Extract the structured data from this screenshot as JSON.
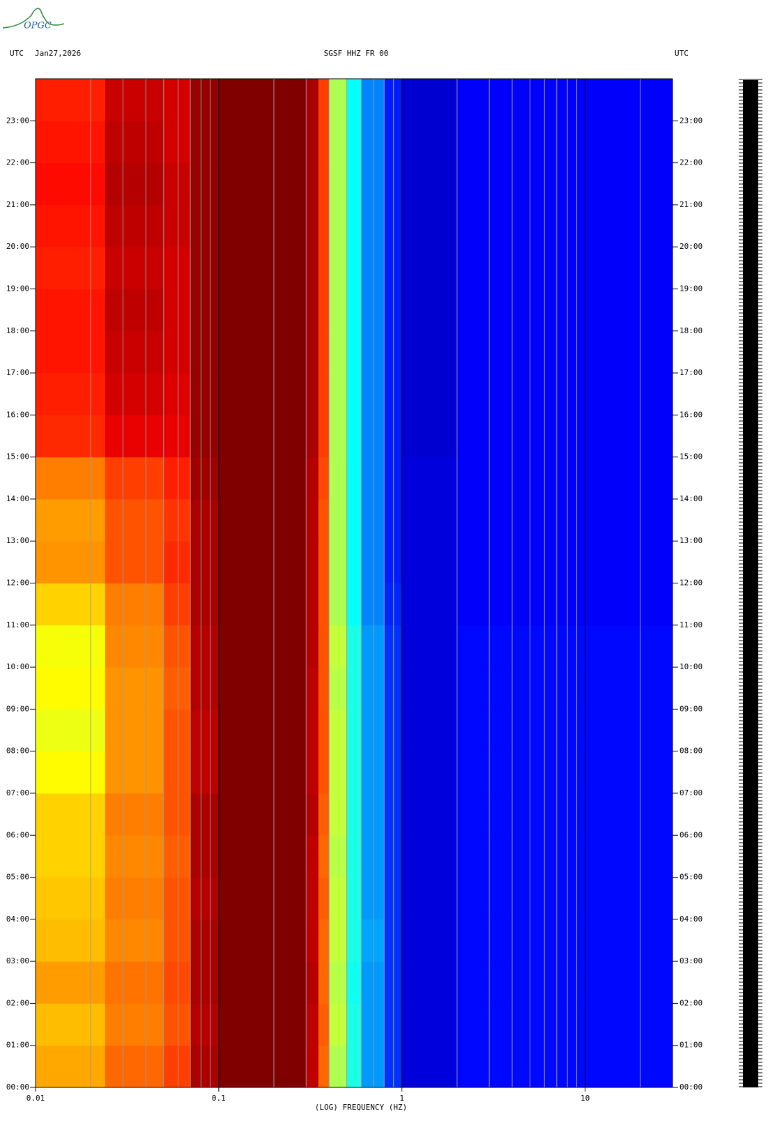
{
  "chart_data": {
    "type": "spectrogram",
    "logo": "OPGC",
    "left_label": "UTC",
    "date": "Jan27,2026",
    "title": "SGSF HHZ FR 00",
    "right_label": "UTC",
    "xlabel": "(LOG) FREQUENCY (HZ)",
    "xscale": "log",
    "colormap": "jet",
    "xlim": [
      0.01,
      30
    ],
    "xticks": [
      0.01,
      0.1,
      1,
      10
    ],
    "xminor": [
      0.02,
      0.03,
      0.04,
      0.05,
      0.06,
      0.07,
      0.08,
      0.09,
      0.2,
      0.3,
      0.4,
      0.5,
      0.6,
      0.7,
      0.8,
      0.9,
      2,
      3,
      4,
      5,
      6,
      7,
      8,
      9,
      20
    ],
    "ylim": [
      0,
      24
    ],
    "yticks": [
      {
        "value": 0,
        "label": "00:00"
      },
      {
        "value": 1,
        "label": "01:00"
      },
      {
        "value": 2,
        "label": "02:00"
      },
      {
        "value": 3,
        "label": "03:00"
      },
      {
        "value": 4,
        "label": "04:00"
      },
      {
        "value": 5,
        "label": "05:00"
      },
      {
        "value": 6,
        "label": "06:00"
      },
      {
        "value": 7,
        "label": "07:00"
      },
      {
        "value": 8,
        "label": "08:00"
      },
      {
        "value": 9,
        "label": "09:00"
      },
      {
        "value": 10,
        "label": "10:00"
      },
      {
        "value": 11,
        "label": "11:00"
      },
      {
        "value": 12,
        "label": "12:00"
      },
      {
        "value": 13,
        "label": "13:00"
      },
      {
        "value": 14,
        "label": "14:00"
      },
      {
        "value": 15,
        "label": "15:00"
      },
      {
        "value": 16,
        "label": "16:00"
      },
      {
        "value": 17,
        "label": "17:00"
      },
      {
        "value": 18,
        "label": "18:00"
      },
      {
        "value": 19,
        "label": "19:00"
      },
      {
        "value": 20,
        "label": "20:00"
      },
      {
        "value": 21,
        "label": "21:00"
      },
      {
        "value": 22,
        "label": "22:00"
      },
      {
        "value": 23,
        "label": "23:00"
      }
    ],
    "freq_edges": [
      0.01,
      0.024,
      0.05,
      0.07,
      0.1,
      0.3,
      0.35,
      0.4,
      0.5,
      0.6,
      0.8,
      1,
      2,
      30
    ],
    "time_edges": [
      0,
      1,
      2,
      3,
      4,
      5,
      6,
      7,
      8,
      9,
      10,
      11,
      12,
      13,
      14,
      15,
      16,
      17,
      18,
      19,
      20,
      21,
      22,
      23,
      24
    ],
    "z": [
      [
        72,
        78,
        82,
        96,
        100,
        94,
        78,
        56,
        42,
        30,
        20,
        12,
        16
      ],
      [
        70,
        76,
        80,
        95,
        100,
        94,
        79,
        58,
        42,
        30,
        20,
        12,
        16
      ],
      [
        73,
        77,
        81,
        96,
        100,
        95,
        78,
        57,
        41,
        30,
        20,
        12,
        16
      ],
      [
        70,
        75,
        80,
        96,
        100,
        94,
        78,
        58,
        42,
        31,
        20,
        12,
        16
      ],
      [
        69,
        76,
        80,
        95,
        100,
        94,
        79,
        58,
        42,
        30,
        20,
        12,
        16
      ],
      [
        68,
        75,
        79,
        96,
        100,
        94,
        78,
        57,
        42,
        30,
        20,
        12,
        16
      ],
      [
        68,
        76,
        80,
        96,
        100,
        95,
        79,
        58,
        42,
        30,
        20,
        12,
        16
      ],
      [
        64,
        74,
        80,
        94,
        100,
        94,
        80,
        58,
        42,
        30,
        20,
        12,
        16
      ],
      [
        62,
        74,
        80,
        94,
        100,
        94,
        80,
        58,
        42,
        30,
        20,
        12,
        16
      ],
      [
        64,
        74,
        79,
        95,
        100,
        94,
        80,
        57,
        42,
        30,
        20,
        12,
        16
      ],
      [
        63,
        75,
        80,
        95,
        100,
        95,
        80,
        58,
        42,
        30,
        20,
        12,
        16
      ],
      [
        68,
        76,
        82,
        96,
        100,
        95,
        80,
        56,
        40,
        28,
        19,
        12,
        15
      ],
      [
        74,
        80,
        84,
        96,
        100,
        95,
        80,
        56,
        40,
        28,
        18,
        12,
        15
      ],
      [
        73,
        80,
        83,
        96,
        100,
        95,
        80,
        56,
        40,
        28,
        18,
        12,
        15
      ],
      [
        76,
        82,
        85,
        97,
        100,
        95,
        81,
        56,
        40,
        28,
        18,
        12,
        15
      ],
      [
        84,
        90,
        90,
        98,
        100,
        96,
        82,
        56,
        40,
        28,
        18,
        11,
        15
      ],
      [
        85,
        92,
        91,
        98,
        100,
        96,
        82,
        56,
        40,
        28,
        18,
        11,
        15
      ],
      [
        86,
        93,
        92,
        98,
        100,
        96,
        82,
        56,
        40,
        28,
        18,
        11,
        15
      ],
      [
        86,
        94,
        92,
        98,
        100,
        96,
        82,
        56,
        40,
        28,
        18,
        11,
        15
      ],
      [
        85,
        93,
        92,
        98,
        100,
        96,
        82,
        56,
        40,
        28,
        18,
        11,
        15
      ],
      [
        86,
        94,
        93,
        98,
        100,
        96,
        82,
        56,
        40,
        28,
        18,
        11,
        15
      ],
      [
        87,
        95,
        93,
        98,
        100,
        96,
        82,
        56,
        40,
        28,
        18,
        11,
        15
      ],
      [
        86,
        94,
        92,
        98,
        100,
        96,
        82,
        56,
        40,
        28,
        18,
        11,
        15
      ],
      [
        85,
        93,
        92,
        98,
        100,
        96,
        82,
        56,
        40,
        28,
        18,
        11,
        15
      ]
    ]
  }
}
